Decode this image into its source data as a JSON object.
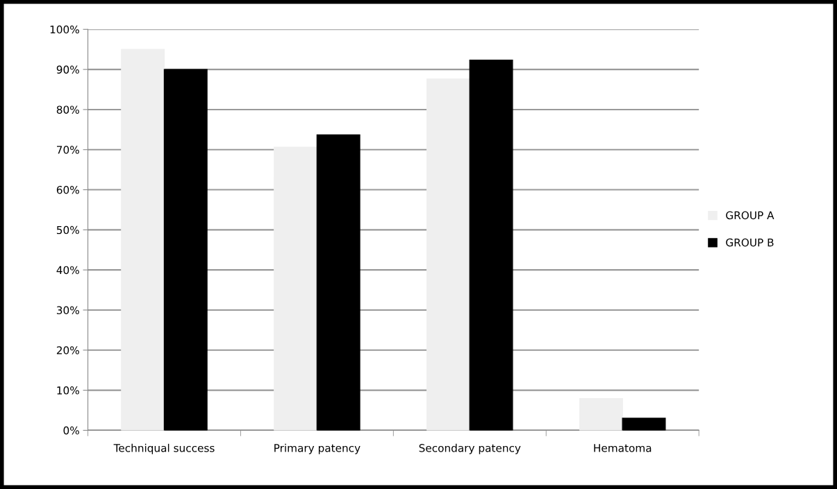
{
  "chart_data": {
    "type": "bar",
    "categories": [
      "Techniqual success",
      "Primary patency",
      "Secondary patency",
      "Hematoma"
    ],
    "series": [
      {
        "name": "GROUP A",
        "color": "#efefef",
        "values": [
          95,
          70.6,
          87.6,
          7.9
        ]
      },
      {
        "name": "GROUP B",
        "color": "#000000",
        "values": [
          90,
          73.7,
          92.3,
          3
        ]
      }
    ],
    "ylim": [
      0,
      100
    ],
    "yticks": [
      {
        "value": 0,
        "label": "0%"
      },
      {
        "value": 10,
        "label": "10%"
      },
      {
        "value": 20,
        "label": "20%"
      },
      {
        "value": 30,
        "label": "30%"
      },
      {
        "value": 40,
        "label": "40%"
      },
      {
        "value": 50,
        "label": "50%"
      },
      {
        "value": 60,
        "label": "60%"
      },
      {
        "value": 70,
        "label": "70%"
      },
      {
        "value": 80,
        "label": "80%"
      },
      {
        "value": 90,
        "label": "90%"
      },
      {
        "value": 100,
        "label": "100%"
      }
    ],
    "grid": "y",
    "legend": "right"
  }
}
